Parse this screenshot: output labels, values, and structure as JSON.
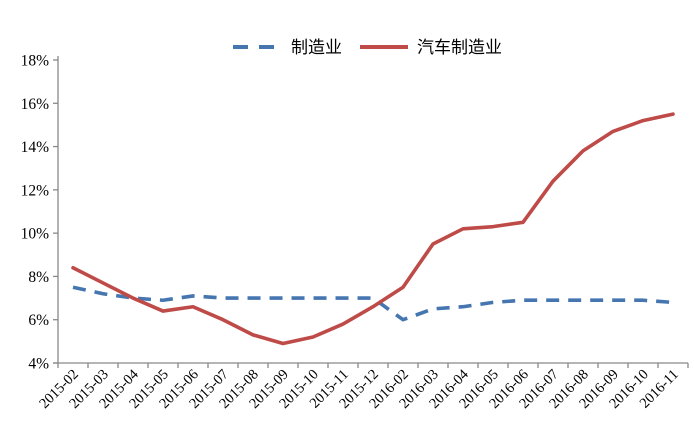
{
  "chart_data": {
    "type": "line",
    "title": "",
    "xlabel": "",
    "ylabel": "",
    "categories": [
      "2015-02",
      "2015-03",
      "2015-04",
      "2015-05",
      "2015-06",
      "2015-07",
      "2015-08",
      "2015-09",
      "2015-10",
      "2015-11",
      "2015-12",
      "2016-02",
      "2016-03",
      "2016-04",
      "2016-05",
      "2016-06",
      "2016-07",
      "2016-08",
      "2016-09",
      "2016-10",
      "2016-11"
    ],
    "series": [
      {
        "name": "制造业",
        "style": "dashed",
        "color": "#4676B0",
        "values": [
          7.5,
          7.2,
          7.0,
          6.9,
          7.1,
          7.0,
          7.0,
          7.0,
          7.0,
          7.0,
          7.0,
          6.0,
          6.5,
          6.6,
          6.8,
          6.9,
          6.9,
          6.9,
          6.9,
          6.9,
          6.8
        ]
      },
      {
        "name": "汽车制造业",
        "style": "solid",
        "color": "#BE4B48",
        "values": [
          8.4,
          7.7,
          7.0,
          6.4,
          6.6,
          6.0,
          5.3,
          4.9,
          5.2,
          5.8,
          6.6,
          7.5,
          9.5,
          10.2,
          10.3,
          10.5,
          12.4,
          13.8,
          14.7,
          15.2,
          15.5
        ]
      }
    ],
    "ylim": [
      4,
      18
    ],
    "ytick_step": 2,
    "yticks": [
      "4%",
      "6%",
      "8%",
      "10%",
      "12%",
      "14%",
      "16%",
      "18%"
    ],
    "grid": false,
    "legend_position": "top-center",
    "colors": {
      "axis": "#898989",
      "text": "#000000",
      "background": "#ffffff"
    }
  }
}
